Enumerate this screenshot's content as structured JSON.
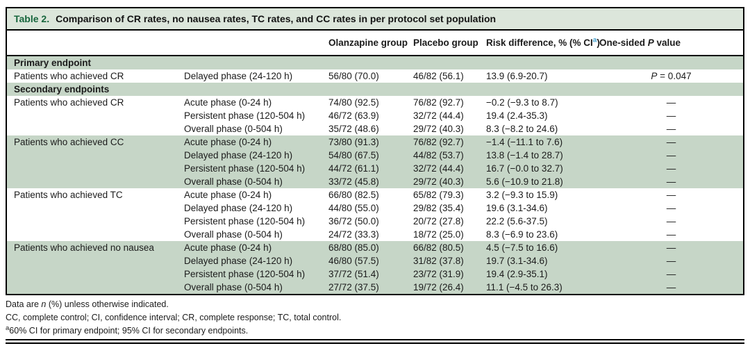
{
  "title": {
    "label": "Table 2.",
    "text": "Comparison of CR rates, no nausea rates, TC rates, and CC rates in per protocol set population"
  },
  "header": {
    "olanzapine": "Olanzapine group",
    "placebo": "Placebo group",
    "risk_prefix": "Risk difference, % (% CI",
    "risk_sup": "a",
    "risk_suffix": ")",
    "p_prefix": "One-sided ",
    "p_italic": "P",
    "p_suffix": " value"
  },
  "rows": [
    {
      "section": "Primary endpoint"
    },
    {
      "endpoint": "Patients who achieved CR",
      "phase": "Delayed phase (24-120 h)",
      "olz": "56/80 (70.0)",
      "pbo": "46/82 (56.1)",
      "risk": "13.9 (6.9-20.7)",
      "p_italic": "P",
      "p_text": " = 0.047",
      "bg": "white"
    },
    {
      "section": "Secondary endpoints"
    },
    {
      "endpoint": "Patients who achieved CR",
      "phase": "Acute phase (0-24 h)",
      "olz": "74/80 (92.5)",
      "pbo": "76/82 (92.7)",
      "risk": "−0.2 (−9.3 to 8.7)",
      "p_text": "—",
      "bg": "white"
    },
    {
      "endpoint": "",
      "phase": "Persistent phase (120-504 h)",
      "olz": "46/72 (63.9)",
      "pbo": "32/72 (44.4)",
      "risk": "19.4 (2.4-35.3)",
      "p_text": "—",
      "bg": "white"
    },
    {
      "endpoint": "",
      "phase": "Overall phase (0-504 h)",
      "olz": "35/72 (48.6)",
      "pbo": "29/72 (40.3)",
      "risk": "8.3 (−8.2 to 24.6)",
      "p_text": "—",
      "bg": "white"
    },
    {
      "endpoint": "Patients who achieved CC",
      "phase": "Acute phase (0-24 h)",
      "olz": "73/80 (91.3)",
      "pbo": "76/82 (92.7)",
      "risk": "−1.4 (−11.1 to 7.6)",
      "p_text": "—",
      "bg": "green"
    },
    {
      "endpoint": "",
      "phase": "Delayed phase (24-120 h)",
      "olz": "54/80 (67.5)",
      "pbo": "44/82 (53.7)",
      "risk": "13.8 (−1.4 to 28.7)",
      "p_text": "—",
      "bg": "green"
    },
    {
      "endpoint": "",
      "phase": "Persistent phase (120-504 h)",
      "olz": "44/72 (61.1)",
      "pbo": "32/72 (44.4)",
      "risk": "16.7 (−0.0 to 32.7)",
      "p_text": "—",
      "bg": "green"
    },
    {
      "endpoint": "",
      "phase": "Overall phase (0-504 h)",
      "olz": "33/72 (45.8)",
      "pbo": "29/72 (40.3)",
      "risk": "5.6 (−10.9 to 21.8)",
      "p_text": "—",
      "bg": "green"
    },
    {
      "endpoint": "Patients who achieved TC",
      "phase": "Acute phase (0-24 h)",
      "olz": "66/80 (82.5)",
      "pbo": "65/82 (79.3)",
      "risk": "3.2 (−9.3 to 15.9)",
      "p_text": "—",
      "bg": "white"
    },
    {
      "endpoint": "",
      "phase": "Delayed phase (24-120 h)",
      "olz": "44/80 (55.0)",
      "pbo": "29/82 (35.4)",
      "risk": "19.6 (3.1-34.6)",
      "p_text": "—",
      "bg": "white"
    },
    {
      "endpoint": "",
      "phase": "Persistent phase (120-504 h)",
      "olz": "36/72 (50.0)",
      "pbo": "20/72 (27.8)",
      "risk": "22.2 (5.6-37.5)",
      "p_text": "—",
      "bg": "white"
    },
    {
      "endpoint": "",
      "phase": "Overall phase (0-504 h)",
      "olz": "24/72 (33.3)",
      "pbo": "18/72 (25.0)",
      "risk": "8.3 (−6.9 to 23.6)",
      "p_text": "—",
      "bg": "white"
    },
    {
      "endpoint": "Patients who achieved no nausea",
      "phase": "Acute phase (0-24 h)",
      "olz": "68/80 (85.0)",
      "pbo": "66/82 (80.5)",
      "risk": "4.5 (−7.5 to 16.6)",
      "p_text": "—",
      "bg": "green"
    },
    {
      "endpoint": "",
      "phase": "Delayed phase (24-120 h)",
      "olz": "46/80 (57.5)",
      "pbo": "31/82 (37.8)",
      "risk": "19.7 (3.1-34.6)",
      "p_text": "—",
      "bg": "green"
    },
    {
      "endpoint": "",
      "phase": "Persistent phase (120-504 h)",
      "olz": "37/72 (51.4)",
      "pbo": "23/72 (31.9)",
      "risk": "19.4 (2.9-35.1)",
      "p_text": "—",
      "bg": "green"
    },
    {
      "endpoint": "",
      "phase": "Overall phase (0-504 h)",
      "olz": "27/72 (37.5)",
      "pbo": "19/72 (26.4)",
      "risk": "11.1 (−4.5 to 26.3)",
      "p_text": "—",
      "bg": "green"
    }
  ],
  "footnotes": {
    "line1_prefix": "Data are ",
    "line1_italic": "n",
    "line1_suffix": " (%) unless otherwise indicated.",
    "line2": "CC, complete control; CI, confidence interval; CR, complete response; TC, total control.",
    "line3_sup": "a",
    "line3_text": "60% CI for primary endpoint; 95% CI for secondary endpoints."
  },
  "colors": {
    "title_bg": "#dce6db",
    "band_green": "#c6d6c7",
    "table_label_green": "#17663d",
    "sup_blue": "#45a3d2"
  }
}
